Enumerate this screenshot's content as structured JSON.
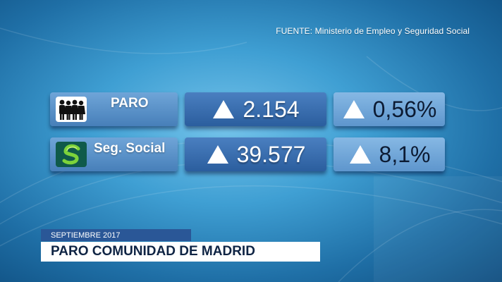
{
  "source": "FUENTE: Ministerio de Empleo y Seguridad Social",
  "rows": [
    {
      "icon": "people-icon",
      "label": "PARO",
      "value": "2.154",
      "value_trend": "up",
      "percent": "0,56%",
      "percent_trend": "up"
    },
    {
      "icon": "social-security-logo-icon",
      "label": "Seg. Social",
      "value": "39.577",
      "value_trend": "up",
      "percent": "8,1%",
      "percent_trend": "up"
    }
  ],
  "lower_third": {
    "date": "SEPTIEMBRE 2017",
    "title": "PARO COMUNIDAD DE MADRID"
  },
  "colors": {
    "label_box": "#5f96cc",
    "value_box": "#3a6fb0",
    "percent_box": "#74a9dc",
    "date_bar": "#2a5797"
  }
}
